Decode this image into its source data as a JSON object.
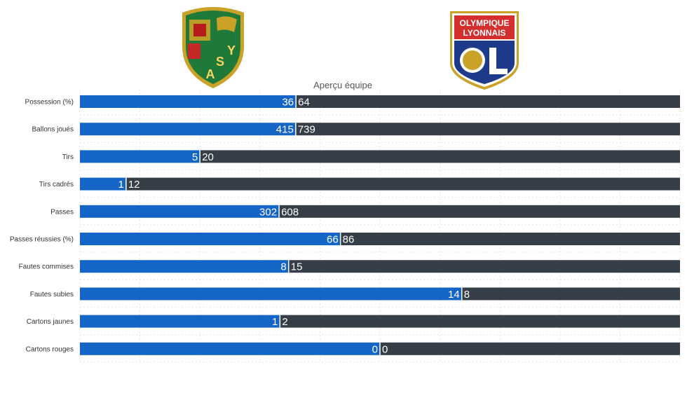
{
  "logos": {
    "home_letters": [
      "A",
      "S",
      "Y"
    ],
    "away_line1": "OLYMPIQUE",
    "away_line2": "LYONNAIS"
  },
  "colors": {
    "home_bar": "#1565c7",
    "away_bar": "#363f47",
    "grid": "#e6e6e6"
  },
  "chart_data": {
    "type": "bar",
    "orientation": "horizontal-stacked-percent",
    "title": "Aperçu équipe",
    "categories": [
      "Possession (%)",
      "Ballons joués",
      "Tirs",
      "Tirs cadrés",
      "Passes",
      "Passes réussies (%)",
      "Fautes commises",
      "Fautes subies",
      "Cartons jaunes",
      "Cartons rouges"
    ],
    "series": [
      {
        "values": [
          36,
          415,
          5,
          1,
          302,
          66,
          8,
          14,
          1,
          0
        ]
      },
      {
        "values": [
          64,
          739,
          20,
          12,
          608,
          86,
          15,
          8,
          2,
          0
        ]
      }
    ],
    "grid": true,
    "legend": "none"
  }
}
